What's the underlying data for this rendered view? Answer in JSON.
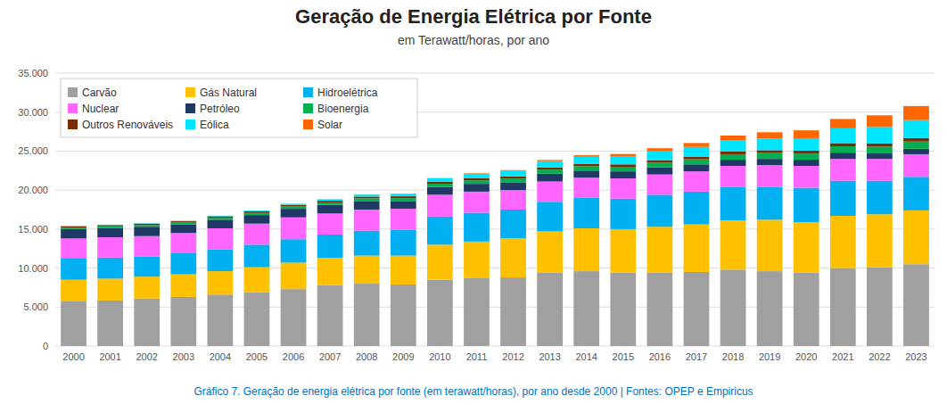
{
  "chart_data": {
    "type": "bar",
    "title": "Geração de Energia Elétrica por Fonte",
    "subtitle": "em Terawatt/horas, por ano",
    "caption": "Gráfico 7. Geração de energia elétrica por fonte (em terawatt/horas), por ano desde 2000 | Fontes: OPEP e Empiricus",
    "categories": [
      "2000",
      "2001",
      "2002",
      "2003",
      "2004",
      "2005",
      "2006",
      "2007",
      "2008",
      "2009",
      "2010",
      "2011",
      "2012",
      "2013",
      "2014",
      "2015",
      "2016",
      "2017",
      "2018",
      "2019",
      "2020",
      "2021",
      "2022",
      "2023"
    ],
    "series": [
      {
        "name": "Carvão",
        "color": "#a0a0a0",
        "values": [
          5800,
          5850,
          6100,
          6300,
          6600,
          6900,
          7300,
          7800,
          8000,
          7900,
          8500,
          8700,
          8800,
          9400,
          9600,
          9400,
          9400,
          9500,
          9800,
          9600,
          9400,
          10000,
          10100,
          10500
        ]
      },
      {
        "name": "Gás Natural",
        "color": "#ffc000",
        "values": [
          2700,
          2800,
          2800,
          2900,
          3000,
          3200,
          3400,
          3500,
          3600,
          3700,
          4500,
          4700,
          5000,
          5300,
          5500,
          5600,
          5900,
          6100,
          6300,
          6600,
          6500,
          6700,
          6800,
          6900
        ]
      },
      {
        "name": "Hidroelétrica",
        "color": "#00b0f0",
        "values": [
          2800,
          2700,
          2600,
          2700,
          2800,
          2900,
          3000,
          3000,
          3200,
          3300,
          3600,
          3700,
          3700,
          3800,
          3900,
          3900,
          4100,
          4200,
          4300,
          4200,
          4400,
          4500,
          4300,
          4300
        ]
      },
      {
        "name": "Nuclear",
        "color": "#ff66ff",
        "values": [
          2500,
          2600,
          2600,
          2600,
          2700,
          2700,
          2800,
          2700,
          2700,
          2700,
          2800,
          2700,
          2500,
          2600,
          2600,
          2600,
          2600,
          2600,
          2700,
          2800,
          2800,
          2800,
          2800,
          2900
        ]
      },
      {
        "name": "Petróleo",
        "color": "#1f3864",
        "values": [
          1200,
          1200,
          1200,
          1100,
          1100,
          1100,
          1100,
          1100,
          1100,
          1000,
          1000,
          1000,
          1000,
          1000,
          900,
          900,
          900,
          900,
          800,
          800,
          800,
          800,
          700,
          700
        ]
      },
      {
        "name": "Bioenergia",
        "color": "#00b050",
        "values": [
          200,
          210,
          220,
          230,
          250,
          270,
          290,
          310,
          340,
          370,
          410,
          450,
          490,
          530,
          570,
          590,
          620,
          650,
          700,
          750,
          780,
          820,
          870,
          930
        ]
      },
      {
        "name": "Outros Renováveis",
        "color": "#7b2c00",
        "values": [
          160,
          165,
          170,
          175,
          185,
          195,
          205,
          215,
          225,
          235,
          250,
          260,
          270,
          285,
          300,
          310,
          320,
          335,
          350,
          365,
          380,
          400,
          420,
          450
        ]
      },
      {
        "name": "Eólica",
        "color": "#00e5ff",
        "values": [
          30,
          40,
          50,
          65,
          85,
          110,
          150,
          200,
          260,
          330,
          450,
          600,
          700,
          800,
          900,
          1050,
          1150,
          1250,
          1400,
          1500,
          1600,
          1900,
          2100,
          2300
        ]
      },
      {
        "name": "Solar",
        "color": "#ff6600",
        "values": [
          2,
          2,
          3,
          3,
          4,
          5,
          6,
          8,
          12,
          18,
          30,
          60,
          100,
          150,
          200,
          280,
          380,
          500,
          650,
          800,
          1000,
          1200,
          1500,
          1800
        ]
      }
    ],
    "stacked": true,
    "ylim": [
      0,
      35000
    ],
    "yticks": [
      0,
      {
        "value": 5000,
        "label": "5.000"
      },
      {
        "value": 10000,
        "label": "10.000"
      },
      {
        "value": 15000,
        "label": "15.000"
      },
      {
        "value": 20000,
        "label": "20.000"
      },
      {
        "value": 25000,
        "label": "25.000"
      },
      {
        "value": 30000,
        "label": "30.000"
      },
      {
        "value": 35000,
        "label": "35.000"
      }
    ],
    "grid": true,
    "legend": "upper left"
  }
}
